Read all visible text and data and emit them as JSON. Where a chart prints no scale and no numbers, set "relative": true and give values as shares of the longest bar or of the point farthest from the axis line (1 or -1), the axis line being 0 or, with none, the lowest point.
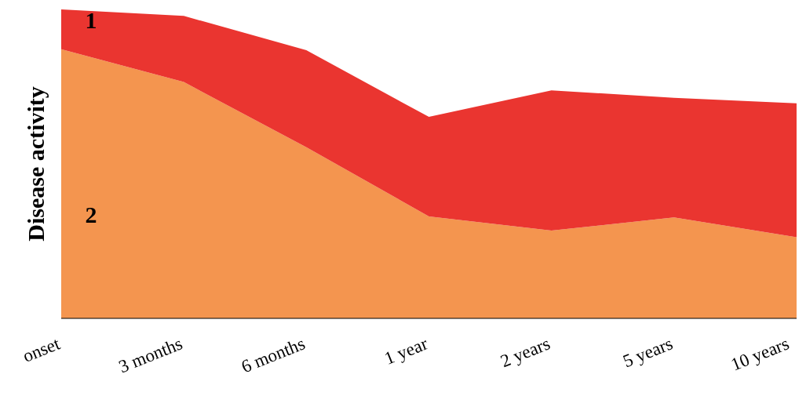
{
  "chart_data": {
    "type": "area",
    "stacked": true,
    "relative": true,
    "ylabel": "Disease activity",
    "categories": [
      "onset",
      "3 months",
      "6 months",
      "1 year",
      "2 years",
      "5 years",
      "10 years"
    ],
    "series": [
      {
        "name": "2",
        "color": "#f4954f",
        "values": [
          0.871,
          0.765,
          0.554,
          0.33,
          0.284,
          0.327,
          0.263
        ]
      },
      {
        "name": "1",
        "color": "#ea3530",
        "values": [
          0.129,
          0.214,
          0.314,
          0.322,
          0.454,
          0.387,
          0.433
        ]
      }
    ],
    "legend": false
  }
}
